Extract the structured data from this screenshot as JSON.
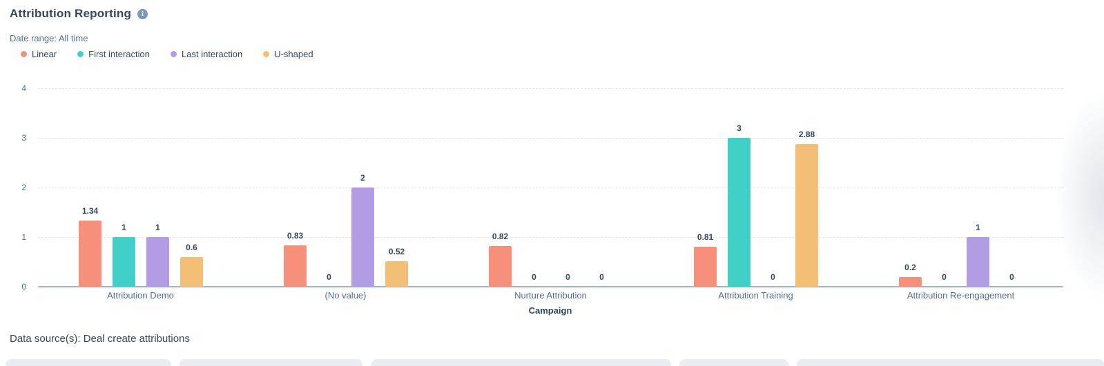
{
  "header": {
    "title": "Attribution Reporting",
    "date_range": "Date range: All time"
  },
  "icons": {
    "info": "i"
  },
  "chart_data": {
    "type": "bar",
    "title": "Attribution Reporting",
    "categories": [
      "Attribution Demo",
      "(No value)",
      "Nurture Attribution",
      "Attribution Training",
      "Attribution Re-engagement"
    ],
    "series": [
      {
        "name": "Linear",
        "color": "#f6907b",
        "values": [
          1.34,
          0.83,
          0.82,
          0.81,
          0.2
        ]
      },
      {
        "name": "First interaction",
        "color": "#41d0c7",
        "values": [
          1,
          0,
          0,
          3,
          0
        ]
      },
      {
        "name": "Last interaction",
        "color": "#b29ce4",
        "values": [
          1,
          2,
          0,
          0,
          1
        ]
      },
      {
        "name": "U-shaped",
        "color": "#f3bf77",
        "values": [
          0.6,
          0.52,
          0,
          2.88,
          0
        ]
      }
    ],
    "xlabel": "Campaign",
    "ylabel": "",
    "ylim": [
      0,
      4
    ],
    "yticks": [
      0,
      1,
      2,
      3,
      4
    ],
    "grid": "horizontal-dashed",
    "legend_position": "top-left",
    "bar_labels": true
  },
  "colors": {
    "text_dark": "#33475b",
    "text_muted": "#516f90",
    "axis_line": "#9db4cd",
    "gridline": "#dde4ec",
    "info_icon_bg": "#7d98b6"
  },
  "footer": {
    "data_source": "Data source(s): Deal create attributions"
  }
}
